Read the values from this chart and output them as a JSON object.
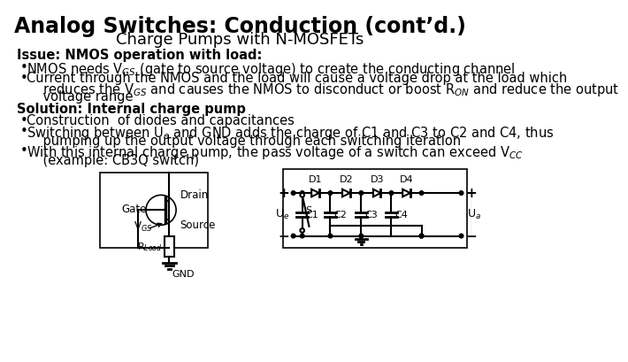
{
  "title": "Analog Switches: Conduction (cont’d.)",
  "subtitle": "Charge Pumps with N-MOSFETs",
  "bg_color": "#ffffff",
  "title_fontsize": 17,
  "subtitle_fontsize": 13,
  "body_fontsize": 10.5,
  "issue_header": "Issue: NMOS operation with load:",
  "issue_bullet1": "NMOS needs V$_{GS}$ (gate to source voltage) to create the conducting channel",
  "issue_bullet2_line1": "Current through the NMOS and the load will cause a voltage drop at the load which",
  "issue_bullet2_line2": "    reduces the V$_{GS}$ and causes the NMOS to disconduct or boost R$_{ON}$ and reduce the output",
  "issue_bullet2_line3": "    voltage range",
  "solution_header": "Solution: Internal charge pump",
  "sol_bullet1": "Construction  of diodes and capacitances",
  "sol_bullet2_line1": "Switching between U$_e$ and GND adds the charge of C1 and C3 to C2 and C4, thus",
  "sol_bullet2_line2": "    pumping up the output voltage through each switching iteration",
  "sol_bullet3_line1": "With this internal charge pump, the pass voltage of a switch can exceed V$_{CC}$",
  "sol_bullet3_line2": "    (example: CB3Q switch)",
  "line_color": "#000000"
}
